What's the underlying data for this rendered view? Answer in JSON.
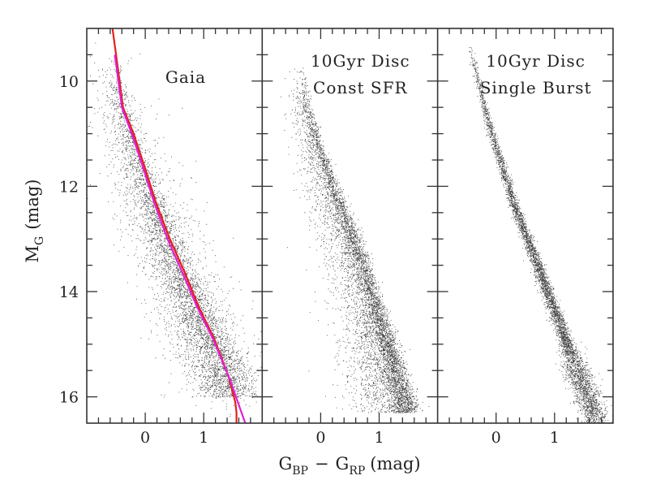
{
  "chart_data": {
    "type": "scatter",
    "title": "",
    "xlabel": "G_BP − G_RP (mag)",
    "xlabel_parts": {
      "main1": "G",
      "sub1": "BP",
      "minus": "−",
      "main2": "G",
      "sub2": "RP",
      "unit": "(mag)"
    },
    "ylabel": "M_G (mag)",
    "ylabel_parts": {
      "main": "M",
      "sub": "G",
      "unit": "(mag)"
    },
    "xlim": [
      -1.0,
      2.0
    ],
    "ylim": [
      9.0,
      16.5
    ],
    "y_inverted": true,
    "x_major_ticks": [
      0,
      1
    ],
    "x_tick_labels": [
      "0",
      "1"
    ],
    "x_minor_step": 0.2,
    "y_major_ticks": [
      10,
      12,
      14,
      16
    ],
    "y_tick_labels": [
      "10",
      "12",
      "14",
      "16"
    ],
    "y_minor_step": 0.5,
    "grid": false,
    "panels": [
      {
        "name": "gaia",
        "label_lines": [
          "Gaia"
        ],
        "point_color": "#000000",
        "sequence_ridge": [
          [
            -0.55,
            9.5
          ],
          [
            -0.4,
            10.5
          ],
          [
            -0.2,
            11.2
          ],
          [
            0.15,
            12.3
          ],
          [
            0.4,
            13.0
          ],
          [
            0.65,
            13.7
          ],
          [
            0.9,
            14.3
          ],
          [
            1.15,
            14.9
          ],
          [
            1.4,
            15.5
          ],
          [
            1.55,
            16.0
          ]
        ],
        "ridge_spread_mag": 0.11,
        "blue_tail_spread_mag": 0.25,
        "halo_fraction": 0.22,
        "curves": [
          {
            "name": "red-isochrone",
            "color": "#e0201c",
            "points": [
              [
                -0.56,
                9.0
              ],
              [
                -0.5,
                9.5
              ],
              [
                -0.38,
                10.5
              ],
              [
                -0.2,
                11.0
              ],
              [
                -0.02,
                11.6
              ],
              [
                0.18,
                12.3
              ],
              [
                0.42,
                13.0
              ],
              [
                0.66,
                13.6
              ],
              [
                0.92,
                14.3
              ],
              [
                1.18,
                14.9
              ],
              [
                1.42,
                15.6
              ],
              [
                1.54,
                16.1
              ],
              [
                1.56,
                16.3
              ],
              [
                1.56,
                16.5
              ]
            ]
          },
          {
            "name": "magenta-fit",
            "color": "#e020d0",
            "points": [
              [
                -0.52,
                9.5
              ],
              [
                -0.4,
                10.5
              ],
              [
                -0.23,
                11.0
              ],
              [
                -0.05,
                11.6
              ],
              [
                0.15,
                12.3
              ],
              [
                0.38,
                13.0
              ],
              [
                0.62,
                13.6
              ],
              [
                0.89,
                14.3
              ],
              [
                1.16,
                14.9
              ],
              [
                1.44,
                15.65
              ],
              [
                1.71,
                16.5
              ]
            ]
          }
        ]
      },
      {
        "name": "const-sfr",
        "label_lines": [
          "10Gyr Disc",
          "Const SFR"
        ],
        "point_color": "#000000",
        "sequence_ridge": [
          [
            -0.35,
            9.7
          ],
          [
            -0.25,
            10.4
          ],
          [
            -0.05,
            11.2
          ],
          [
            0.25,
            12.1
          ],
          [
            0.5,
            12.8
          ],
          [
            0.75,
            13.6
          ],
          [
            0.95,
            14.3
          ],
          [
            1.1,
            14.8
          ],
          [
            1.3,
            15.6
          ],
          [
            1.5,
            16.3
          ]
        ],
        "ridge_spread_mag": 0.06,
        "blue_tail_spread_mag": 0.3,
        "halo_fraction": 0.0
      },
      {
        "name": "single-burst",
        "label_lines": [
          "10Gyr Disc",
          "Single Burst"
        ],
        "point_color": "#000000",
        "sequence_ridge": [
          [
            -0.45,
            9.3
          ],
          [
            -0.3,
            10.0
          ],
          [
            -0.15,
            10.7
          ],
          [
            0.05,
            11.4
          ],
          [
            0.3,
            12.3
          ],
          [
            0.55,
            13.0
          ],
          [
            0.85,
            13.9
          ],
          [
            1.1,
            14.6
          ],
          [
            1.35,
            15.4
          ],
          [
            1.55,
            15.9
          ],
          [
            1.75,
            16.5
          ]
        ],
        "ridge_spread_mag": 0.035,
        "blue_tail_spread_mag": 0.04,
        "halo_fraction": 0.0
      }
    ]
  }
}
